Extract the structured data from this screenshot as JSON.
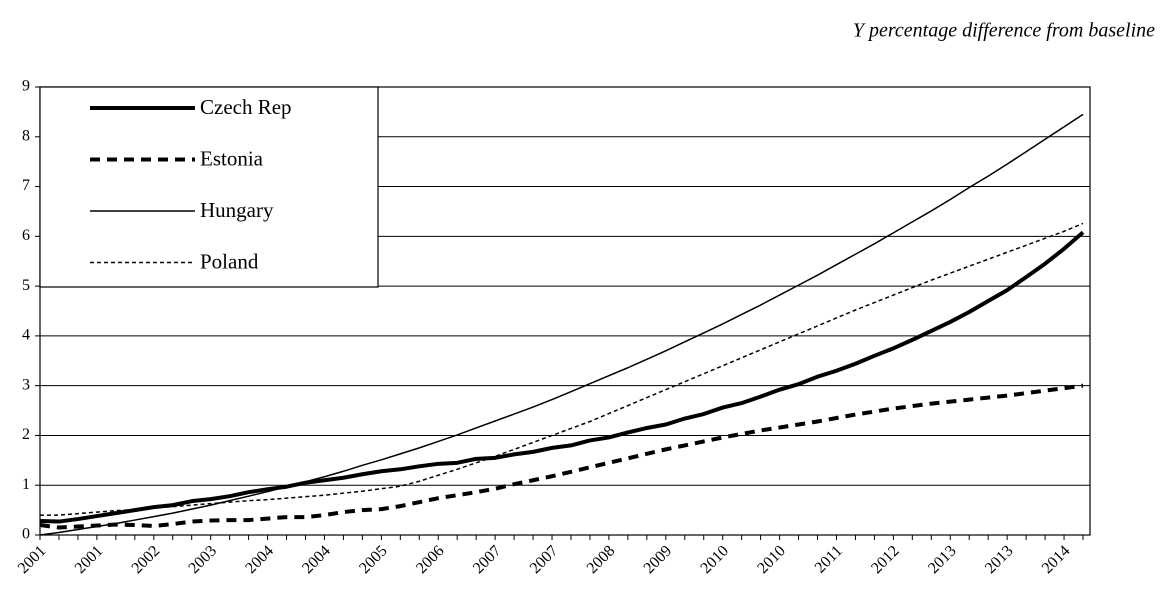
{
  "chart_data": {
    "type": "line",
    "title": "Y percentage difference from baseline",
    "categories": [
      "2001",
      null,
      null,
      "2001",
      null,
      null,
      "2002",
      null,
      null,
      "2003",
      null,
      null,
      "2004",
      null,
      null,
      "2004",
      null,
      null,
      "2005",
      null,
      null,
      "2006",
      null,
      null,
      "2007",
      null,
      null,
      "2007",
      null,
      null,
      "2008",
      null,
      null,
      "2009",
      null,
      null,
      "2010",
      null,
      null,
      "2010",
      null,
      null,
      "2011",
      null,
      null,
      "2012",
      null,
      null,
      "2013",
      null,
      null,
      "2013",
      null,
      null,
      "2014",
      null
    ],
    "ylim": [
      0,
      9
    ],
    "yticks": [
      0,
      1,
      2,
      3,
      4,
      5,
      6,
      7,
      8,
      9
    ],
    "grid": true,
    "legend": "upper-left",
    "series": [
      {
        "name": "Czech Rep",
        "color": "#000000",
        "width": 4,
        "dash": "solid",
        "values": [
          0.28,
          0.27,
          0.32,
          0.38,
          0.44,
          0.5,
          0.56,
          0.6,
          0.68,
          0.72,
          0.78,
          0.86,
          0.92,
          0.97,
          1.05,
          1.1,
          1.15,
          1.22,
          1.28,
          1.32,
          1.38,
          1.43,
          1.45,
          1.53,
          1.55,
          1.62,
          1.67,
          1.75,
          1.8,
          1.9,
          1.96,
          2.06,
          2.15,
          2.22,
          2.34,
          2.43,
          2.56,
          2.65,
          2.78,
          2.92,
          3.03,
          3.18,
          3.3,
          3.44,
          3.6,
          3.75,
          3.92,
          4.1,
          4.28,
          4.48,
          4.7,
          4.92,
          5.18,
          5.45,
          5.75,
          6.08
        ]
      },
      {
        "name": "Estonia",
        "color": "#000000",
        "width": 4,
        "dash": "dash",
        "values": [
          0.2,
          0.15,
          0.17,
          0.19,
          0.21,
          0.2,
          0.18,
          0.22,
          0.27,
          0.29,
          0.3,
          0.3,
          0.33,
          0.36,
          0.36,
          0.4,
          0.46,
          0.5,
          0.52,
          0.58,
          0.66,
          0.74,
          0.8,
          0.86,
          0.93,
          1.02,
          1.1,
          1.18,
          1.27,
          1.36,
          1.45,
          1.54,
          1.63,
          1.72,
          1.8,
          1.88,
          1.96,
          2.03,
          2.1,
          2.16,
          2.22,
          2.28,
          2.35,
          2.42,
          2.48,
          2.54,
          2.59,
          2.64,
          2.68,
          2.72,
          2.76,
          2.8,
          2.85,
          2.9,
          2.95,
          3.0
        ]
      },
      {
        "name": "Hungary",
        "color": "#000000",
        "width": 1.5,
        "dash": "solid",
        "values": [
          0,
          0.05,
          0.11,
          0.17,
          0.23,
          0.3,
          0.37,
          0.44,
          0.52,
          0.6,
          0.69,
          0.78,
          0.87,
          0.97,
          1.07,
          1.17,
          1.28,
          1.4,
          1.51,
          1.63,
          1.75,
          1.88,
          2.01,
          2.15,
          2.29,
          2.43,
          2.57,
          2.72,
          2.88,
          3.04,
          3.2,
          3.36,
          3.53,
          3.7,
          3.88,
          4.06,
          4.24,
          4.43,
          4.62,
          4.82,
          5.02,
          5.22,
          5.43,
          5.64,
          5.85,
          6.07,
          6.29,
          6.51,
          6.74,
          6.98,
          7.21,
          7.45,
          7.7,
          7.95,
          8.2,
          8.45
        ]
      },
      {
        "name": "Poland",
        "color": "#000000",
        "width": 1.5,
        "dash": "dot",
        "values": [
          0.4,
          0.4,
          0.43,
          0.46,
          0.49,
          0.51,
          0.54,
          0.57,
          0.6,
          0.63,
          0.66,
          0.69,
          0.71,
          0.74,
          0.77,
          0.8,
          0.84,
          0.88,
          0.93,
          0.98,
          1.08,
          1.2,
          1.32,
          1.45,
          1.58,
          1.72,
          1.86,
          2.0,
          2.14,
          2.28,
          2.44,
          2.6,
          2.76,
          2.92,
          3.08,
          3.24,
          3.4,
          3.56,
          3.72,
          3.88,
          4.04,
          4.2,
          4.36,
          4.52,
          4.67,
          4.82,
          4.97,
          5.12,
          5.26,
          5.4,
          5.54,
          5.68,
          5.82,
          5.96,
          6.1,
          6.26
        ]
      }
    ]
  }
}
